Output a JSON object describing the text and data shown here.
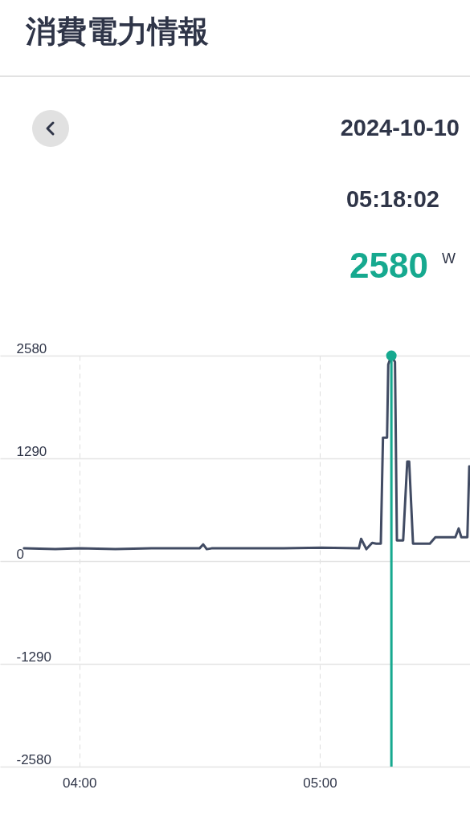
{
  "chart_data": {
    "type": "line",
    "title": "消費電力情報",
    "annotations": [
      "2024-10-10",
      "05:18:02",
      "2580",
      "W"
    ],
    "series": [
      {
        "type": "line",
        "color": "#414b63",
        "x": [
          3.77,
          3.9,
          4.0,
          4.15,
          4.3,
          4.5,
          4.515,
          4.53,
          4.55,
          4.7,
          4.85,
          5.007,
          5.163,
          5.172,
          5.194,
          5.218,
          5.235,
          5.254,
          5.263,
          5.28,
          5.285,
          5.298,
          5.313,
          5.321,
          5.347,
          5.364,
          5.372,
          5.388,
          5.458,
          5.481,
          5.564,
          5.578,
          5.589,
          5.614,
          5.622
        ],
        "values": [
          160,
          150,
          160,
          150,
          160,
          160,
          210,
          150,
          160,
          160,
          160,
          170,
          160,
          280,
          150,
          230,
          220,
          220,
          1550,
          1550,
          2470,
          2580,
          2500,
          260,
          260,
          1250,
          1250,
          220,
          220,
          300,
          300,
          410,
          300,
          300,
          1190
        ]
      },
      {
        "type": "scatter",
        "color": "#16a98f",
        "x": [
          5.298
        ],
        "values": [
          2580
        ]
      }
    ],
    "xlim": [
      3.67,
      5.625
    ],
    "xticks": [
      {
        "value": 4,
        "label": "04:00"
      },
      {
        "value": 5,
        "label": "05:00"
      }
    ],
    "ylim": [
      -2580,
      2580
    ],
    "yticks": [
      -2580,
      -1290,
      0,
      1290,
      2580
    ],
    "ref_lines": [
      {
        "axis": "x",
        "value": 5.298,
        "color": "#16a98f"
      }
    ],
    "grid": true
  }
}
